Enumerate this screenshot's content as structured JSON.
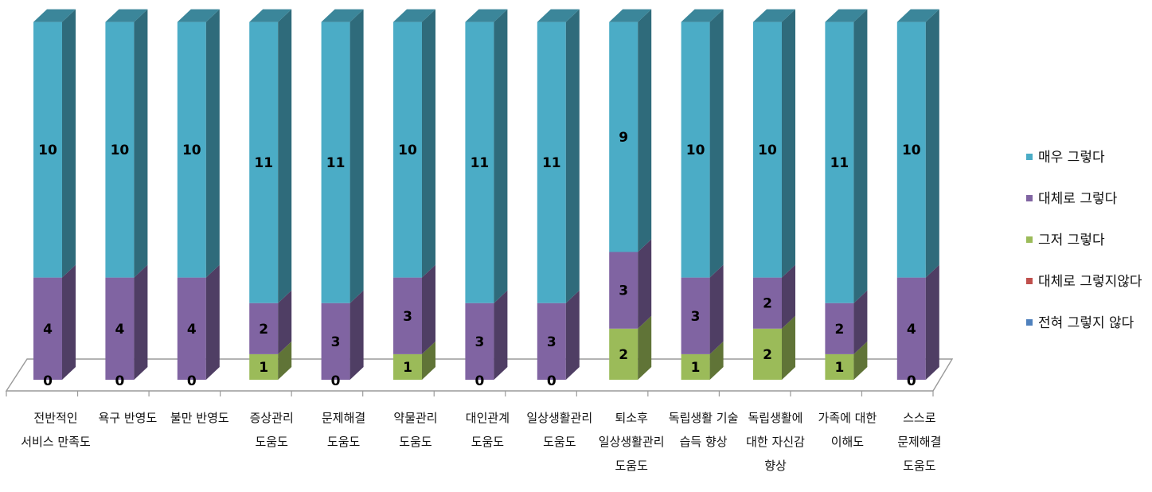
{
  "chart_data": {
    "type": "bar",
    "stacked": true,
    "three_d": true,
    "title": "",
    "xlabel": "",
    "ylabel": "",
    "legend_position": "right",
    "categories": [
      [
        "전반적인",
        "서비스 만족도"
      ],
      [
        "욕구 반영도"
      ],
      [
        "불만 반영도"
      ],
      [
        "증상관리",
        "도움도"
      ],
      [
        "문제해결",
        "도움도"
      ],
      [
        "약물관리",
        "도움도"
      ],
      [
        "대인관계",
        "도움도"
      ],
      [
        "일상생활관리",
        "도움도"
      ],
      [
        "퇴소후",
        "일상생활관리",
        "도움도"
      ],
      [
        "독립생활 기술",
        "습득 향상"
      ],
      [
        "독립생활에",
        "대한 자신감",
        "향상"
      ],
      [
        "가족에 대한",
        "이해도"
      ],
      [
        "스스로",
        "문제해결",
        "도움도"
      ]
    ],
    "series": [
      {
        "name": "전혀 그렇지 않다",
        "color": "#4F81BD",
        "values": [
          0,
          0,
          0,
          0,
          0,
          0,
          0,
          0,
          0,
          0,
          0,
          0,
          0
        ]
      },
      {
        "name": "대체로 그렇지않다",
        "color": "#C0504D",
        "values": [
          0,
          0,
          0,
          0,
          0,
          0,
          0,
          0,
          0,
          0,
          0,
          0,
          0
        ]
      },
      {
        "name": "그저 그렇다",
        "color": "#9BBB59",
        "values": [
          0,
          0,
          0,
          1,
          0,
          1,
          0,
          0,
          2,
          1,
          2,
          1,
          0
        ]
      },
      {
        "name": "대체로 그렇다",
        "color": "#8064A2",
        "values": [
          4,
          4,
          4,
          2,
          3,
          3,
          3,
          3,
          3,
          3,
          2,
          2,
          4
        ]
      },
      {
        "name": "매우 그렇다",
        "color": "#4BACC6",
        "values": [
          10,
          10,
          10,
          11,
          11,
          10,
          11,
          11,
          9,
          10,
          10,
          11,
          10
        ]
      }
    ],
    "zero_label_series": "그저 그렇다",
    "legend_order": [
      "매우 그렇다",
      "대체로 그렇다",
      "그저 그렇다",
      "대체로 그렇지않다",
      "전혀 그렇지 않다"
    ],
    "ylim": [
      0,
      14
    ],
    "grid": false
  }
}
